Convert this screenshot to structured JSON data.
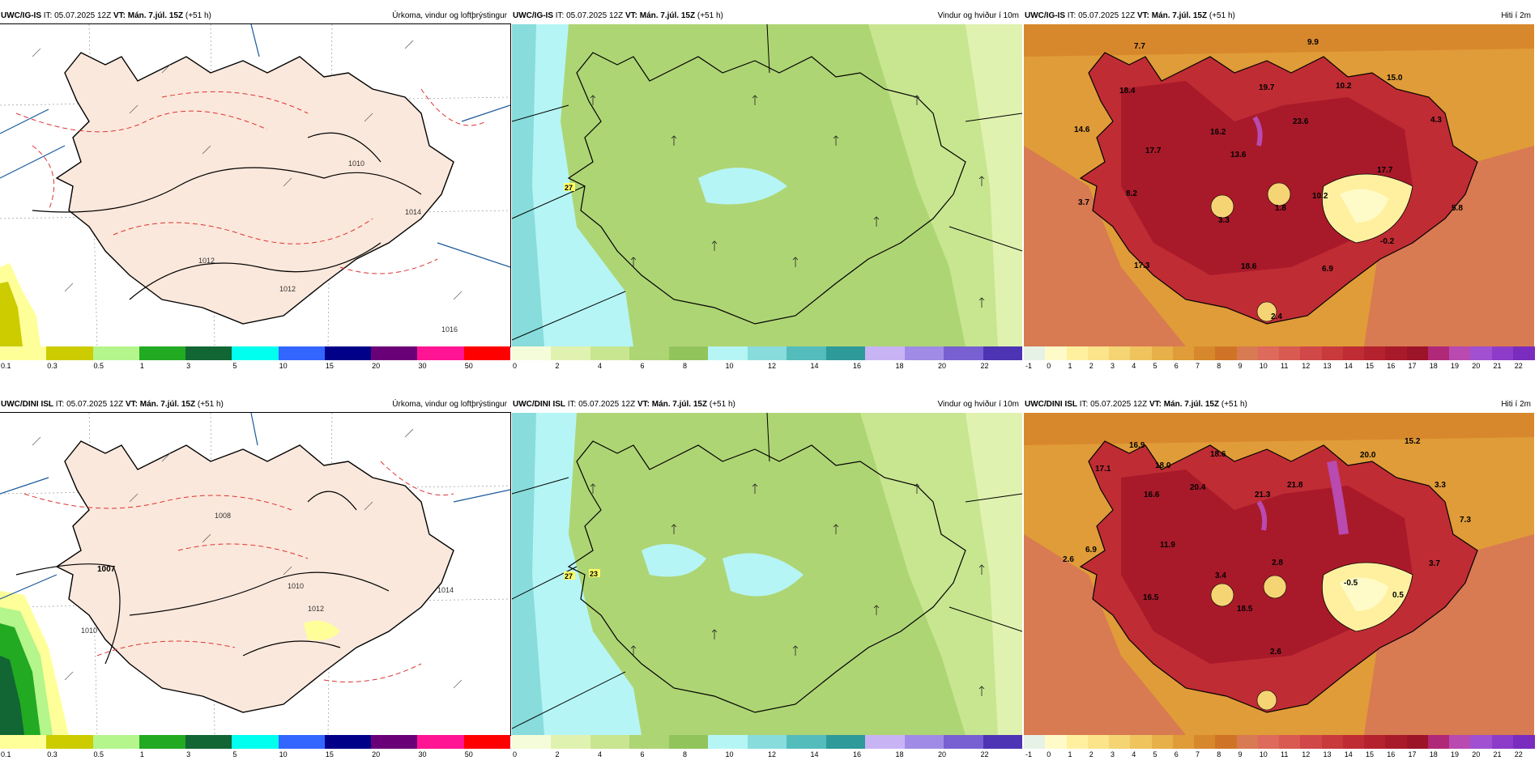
{
  "header": {
    "issue_label": "IT:",
    "issue_time": "05.07.2025 12Z",
    "valid_label": "VT:",
    "valid_time": "Mán. 7.júl. 15Z",
    "lead": "(+51 h)"
  },
  "models": [
    {
      "id": "igis",
      "name": "UWC/IG-IS"
    },
    {
      "id": "dini",
      "name": "UWC/DINI ISL"
    }
  ],
  "variables": {
    "precip": {
      "title": "Úrkoma, vindur og loftþrýstingur",
      "scale_labels": [
        "0.1",
        "0.3",
        "0.5",
        "1",
        "3",
        "5",
        "10",
        "15",
        "20",
        "30",
        "50"
      ],
      "colors": [
        "#ffff99",
        "#cccc00",
        "#b4f58c",
        "#22aa22",
        "#116633",
        "#00ffee",
        "#3366ff",
        "#000088",
        "#6a0077",
        "#ff1493",
        "#ff0000"
      ]
    },
    "wind": {
      "title": "Vindur og hviður í 10m",
      "scale_labels": [
        "0",
        "2",
        "4",
        "6",
        "8",
        "10",
        "12",
        "14",
        "16",
        "18",
        "20",
        "22"
      ],
      "colors": [
        "#f5fcd9",
        "#e0f2b0",
        "#c8e690",
        "#aed574",
        "#92c45c",
        "#b6f5f5",
        "#88dcdc",
        "#55bcbc",
        "#2e9a9a",
        "#c8b4f5",
        "#a08ce6",
        "#7860d2",
        "#4c34b4"
      ]
    },
    "temp": {
      "title": "Hiti í 2m",
      "scale_labels": [
        "-1",
        "0",
        "1",
        "2",
        "3",
        "4",
        "5",
        "6",
        "7",
        "8",
        "9",
        "10",
        "11",
        "12",
        "13",
        "14",
        "15",
        "16",
        "17",
        "18",
        "19",
        "20",
        "21",
        "22"
      ],
      "colors": [
        "#e6f2e6",
        "#fffbc8",
        "#fff0a0",
        "#fbe48a",
        "#f5d474",
        "#efc45c",
        "#e8b048",
        "#e09c38",
        "#d8882c",
        "#cf7426",
        "#d87a52",
        "#dd6a5a",
        "#d85a50",
        "#d04848",
        "#c83a3c",
        "#c02c34",
        "#b4222e",
        "#a81a2a",
        "#9c1428",
        "#b02878",
        "#b84ab0",
        "#a050d0",
        "#8c3cc8",
        "#7a2cbe"
      ]
    }
  },
  "temp_labels": {
    "igis": [
      "7.7",
      "9.9",
      "18.4",
      "19.7",
      "10.2",
      "15.0",
      "14.6",
      "16.2",
      "23.6",
      "4.3",
      "17.7",
      "13.6",
      "17.7",
      "8.2",
      "3.7",
      "10.2",
      "1.8",
      "5.8",
      "3.3",
      "-0.2",
      "17.3",
      "18.6",
      "6.9",
      "2.4"
    ],
    "dini": [
      "16.9",
      "18.6",
      "15.2",
      "18.0",
      "20.0",
      "17.1",
      "20.4",
      "21.8",
      "3.3",
      "21.3",
      "16.6",
      "7.3",
      "6.9",
      "2.6",
      "11.9",
      "2.8",
      "3.4",
      "3.7",
      "-0.5",
      "0.5",
      "16.5",
      "18.5",
      "2.6"
    ]
  },
  "pressure_labels": {
    "igis": [
      "1010",
      "1012",
      "1014",
      "1012",
      "1016"
    ],
    "dini": [
      "1007",
      "1008",
      "1010",
      "1012",
      "1014",
      "1010"
    ]
  },
  "gust_labels": {
    "igis": [
      "27"
    ],
    "dini": [
      "27",
      "23"
    ]
  }
}
